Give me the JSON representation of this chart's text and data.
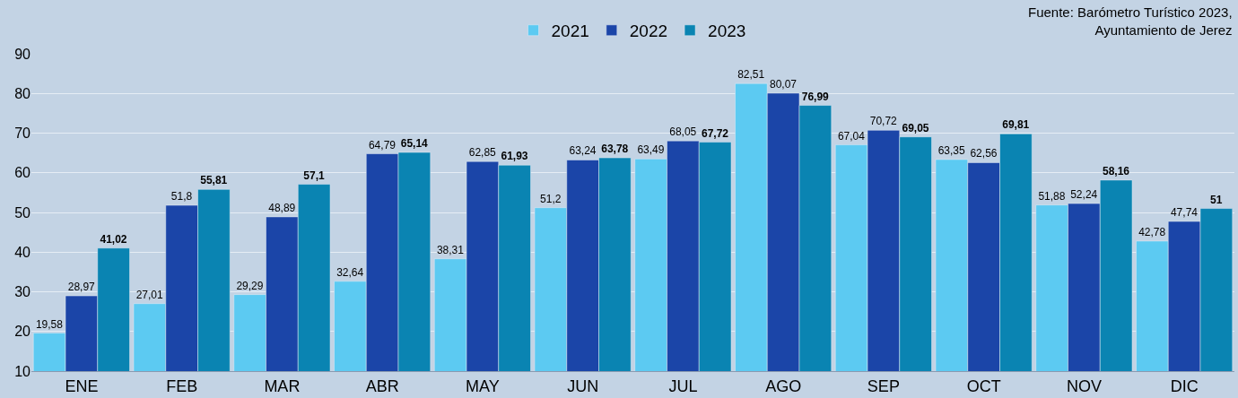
{
  "chart_data": {
    "type": "bar",
    "categories": [
      "ENE",
      "FEB",
      "MAR",
      "ABR",
      "MAY",
      "JUN",
      "JUL",
      "AGO",
      "SEP",
      "OCT",
      "NOV",
      "DIC"
    ],
    "series": [
      {
        "name": "2021",
        "color": "#5ccaf2",
        "values": [
          19.58,
          27.01,
          29.29,
          32.64,
          38.31,
          51.2,
          63.49,
          82.51,
          67.04,
          63.35,
          51.88,
          42.78
        ],
        "value_labels": [
          "19,58",
          "27,01",
          "29,29",
          "32,64",
          "38,31",
          "51,2",
          "63,49",
          "82,51",
          "67,04",
          "63,35",
          "51,88",
          "42,78"
        ]
      },
      {
        "name": "2022",
        "color": "#1b45a8",
        "values": [
          28.97,
          51.8,
          48.89,
          64.79,
          62.85,
          63.24,
          68.05,
          80.07,
          70.72,
          62.56,
          52.24,
          47.74
        ],
        "value_labels": [
          "28,97",
          "51,8",
          "48,89",
          "64,79",
          "62,85",
          "63,24",
          "68,05",
          "80,07",
          "70,72",
          "62,56",
          "52,24",
          "47,74"
        ]
      },
      {
        "name": "2023",
        "color": "#0a84b2",
        "values": [
          41.02,
          55.81,
          57.1,
          65.14,
          61.93,
          63.78,
          67.72,
          76.99,
          69.05,
          69.81,
          58.16,
          51
        ],
        "value_labels": [
          "41,02",
          "55,81",
          "57,1",
          "65,14",
          "61,93",
          "63,78",
          "67,72",
          "76,99",
          "69,05",
          "69,81",
          "58,16",
          "51"
        ]
      }
    ],
    "ylim": [
      10,
      90
    ],
    "yticks": [
      10,
      20,
      30,
      40,
      50,
      60,
      70,
      80,
      90
    ],
    "grid": "y",
    "legend": "top",
    "annotations": [
      "Fuente: Barómetro Turístico 2023,\nAyuntamiento de Jerez"
    ]
  }
}
